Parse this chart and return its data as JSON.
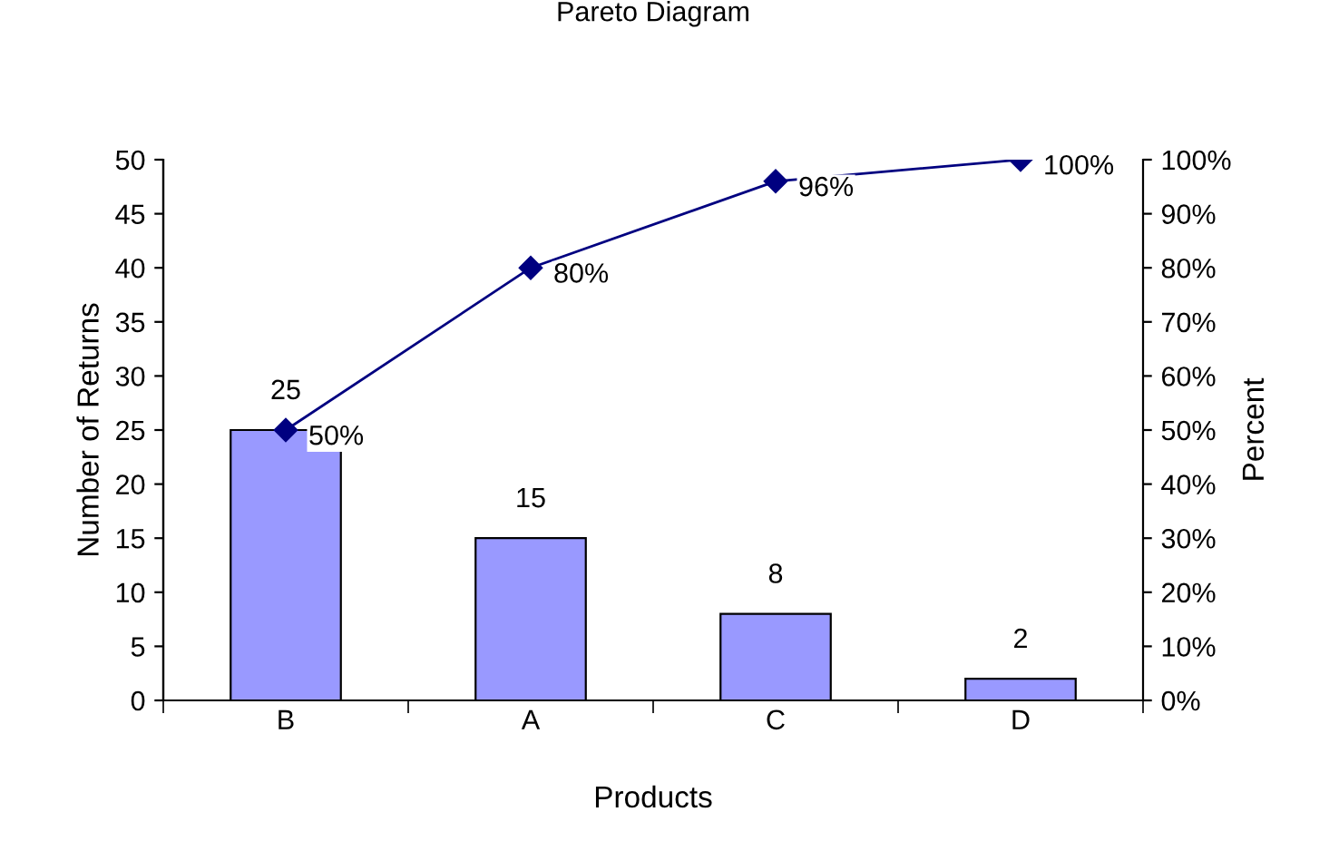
{
  "chart_data": {
    "type": "bar",
    "title": "Pareto Diagram",
    "xlabel": "Products",
    "ylabel": "Number of Returns",
    "y2label": "Percent",
    "categories": [
      "B",
      "A",
      "C",
      "D"
    ],
    "series": [
      {
        "color": "#9999ff",
        "values": [
          25,
          15,
          8,
          2
        ],
        "data_labels": true
      },
      {
        "type": "line",
        "axis": "y2",
        "color": "#000080",
        "marker": "diamond",
        "values": [
          50,
          80,
          96,
          100
        ],
        "value_labels": [
          "50%",
          "80%",
          "96%",
          "100%"
        ]
      }
    ],
    "ylim": [
      0,
      50
    ],
    "yticks": [
      0,
      5,
      10,
      15,
      20,
      25,
      30,
      35,
      40,
      45,
      50
    ],
    "y2lim": [
      0,
      100
    ],
    "y2ticks": [
      {
        "value": 0,
        "label": "0%"
      },
      {
        "value": 10,
        "label": "10%"
      },
      {
        "value": 20,
        "label": "20%"
      },
      {
        "value": 30,
        "label": "30%"
      },
      {
        "value": 40,
        "label": "40%"
      },
      {
        "value": 50,
        "label": "50%"
      },
      {
        "value": 60,
        "label": "60%"
      },
      {
        "value": 70,
        "label": "70%"
      },
      {
        "value": 80,
        "label": "80%"
      },
      {
        "value": 90,
        "label": "90%"
      },
      {
        "value": 100,
        "label": "100%"
      }
    ],
    "grid": false,
    "legend": false
  }
}
